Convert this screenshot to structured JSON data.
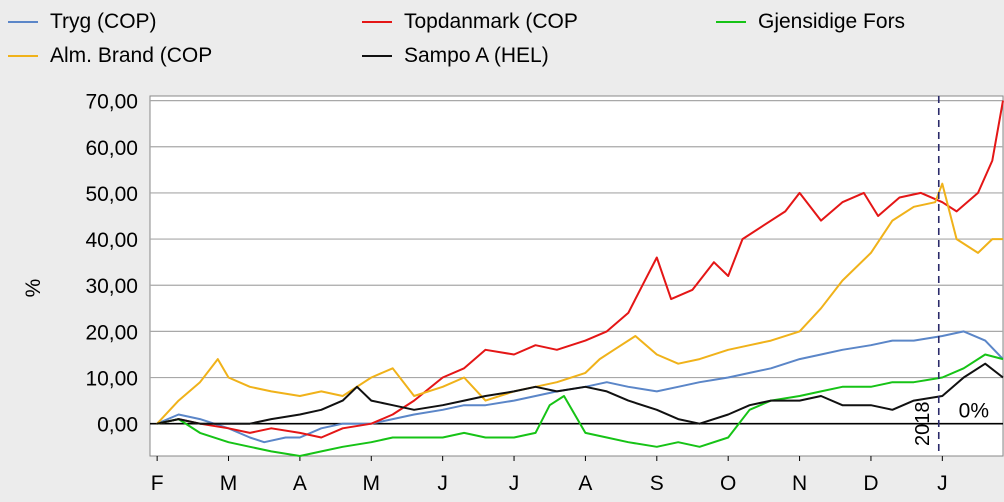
{
  "chart_data": {
    "type": "line",
    "ylabel": "%",
    "xlabel": "",
    "ylim": [
      -7,
      71
    ],
    "yticks": [
      "70,00",
      "60,00",
      "50,00",
      "40,00",
      "30,00",
      "20,00",
      "10,00",
      "0,00"
    ],
    "ytick_values": [
      70,
      60,
      50,
      40,
      30,
      20,
      10,
      0
    ],
    "month_labels": [
      "F",
      "M",
      "A",
      "M",
      "J",
      "J",
      "A",
      "S",
      "O",
      "N",
      "D",
      "J"
    ],
    "month_x": [
      0,
      1,
      2,
      3,
      4,
      5,
      6,
      7,
      8,
      9,
      10,
      11
    ],
    "xlim": [
      -0.1,
      11.85
    ],
    "year_marker": {
      "label": "2018",
      "x": 10.95
    },
    "zero_label": "0%",
    "legend_position": "top",
    "grid": true,
    "series": [
      {
        "name": "Tryg (COP)",
        "color": "#5b86c8",
        "x": [
          0,
          0.3,
          0.6,
          1,
          1.3,
          1.5,
          1.8,
          2,
          2.3,
          2.6,
          3,
          3.3,
          3.6,
          4,
          4.3,
          4.6,
          5,
          5.3,
          5.6,
          6,
          6.3,
          6.6,
          7,
          7.3,
          7.6,
          8,
          8.3,
          8.6,
          9,
          9.3,
          9.6,
          10,
          10.3,
          10.6,
          11,
          11.3,
          11.6,
          11.85
        ],
        "values": [
          0,
          2,
          1,
          -1,
          -3,
          -4,
          -3,
          -3,
          -1,
          0,
          0,
          1,
          2,
          3,
          4,
          4,
          5,
          6,
          7,
          8,
          9,
          8,
          7,
          8,
          9,
          10,
          11,
          12,
          14,
          15,
          16,
          17,
          18,
          18,
          19,
          20,
          18,
          14
        ]
      },
      {
        "name": "Topdanmark (COP",
        "color": "#e41616",
        "x": [
          0,
          0.3,
          0.6,
          1,
          1.3,
          1.6,
          2,
          2.3,
          2.6,
          3,
          3.3,
          3.6,
          4,
          4.3,
          4.6,
          5,
          5.3,
          5.6,
          6,
          6.3,
          6.6,
          6.8,
          7,
          7.2,
          7.5,
          7.8,
          8,
          8.2,
          8.5,
          8.8,
          9,
          9.3,
          9.6,
          9.9,
          10.1,
          10.4,
          10.7,
          11,
          11.2,
          11.5,
          11.7,
          11.85
        ],
        "values": [
          0,
          1,
          0,
          -1,
          -2,
          -1,
          -2,
          -3,
          -1,
          0,
          2,
          5,
          10,
          12,
          16,
          15,
          17,
          16,
          18,
          20,
          24,
          30,
          36,
          27,
          29,
          35,
          32,
          40,
          43,
          46,
          50,
          44,
          48,
          50,
          45,
          49,
          50,
          48,
          46,
          50,
          57,
          70
        ]
      },
      {
        "name": "Gjensidige Fors",
        "color": "#16c316",
        "x": [
          0,
          0.3,
          0.6,
          1,
          1.3,
          1.6,
          2,
          2.3,
          2.6,
          3,
          3.3,
          3.6,
          4,
          4.3,
          4.6,
          5,
          5.3,
          5.5,
          5.7,
          6,
          6.3,
          6.6,
          7,
          7.3,
          7.6,
          8,
          8.3,
          8.6,
          9,
          9.3,
          9.6,
          10,
          10.3,
          10.6,
          11,
          11.3,
          11.6,
          11.85
        ],
        "values": [
          0,
          1,
          -2,
          -4,
          -5,
          -6,
          -7,
          -6,
          -5,
          -4,
          -3,
          -3,
          -3,
          -2,
          -3,
          -3,
          -2,
          4,
          6,
          -2,
          -3,
          -4,
          -5,
          -4,
          -5,
          -3,
          3,
          5,
          6,
          7,
          8,
          8,
          9,
          9,
          10,
          12,
          15,
          14
        ]
      },
      {
        "name": "Alm. Brand (COP",
        "color": "#f0b21a",
        "x": [
          0,
          0.3,
          0.6,
          0.85,
          1,
          1.3,
          1.6,
          2,
          2.3,
          2.6,
          3,
          3.3,
          3.6,
          4,
          4.3,
          4.6,
          5,
          5.3,
          5.6,
          6,
          6.2,
          6.4,
          6.7,
          7,
          7.3,
          7.6,
          8,
          8.3,
          8.6,
          9,
          9.3,
          9.6,
          10,
          10.3,
          10.6,
          10.9,
          11,
          11.2,
          11.5,
          11.7,
          11.85
        ],
        "values": [
          0,
          5,
          9,
          14,
          10,
          8,
          7,
          6,
          7,
          6,
          10,
          12,
          6,
          8,
          10,
          5,
          7,
          8,
          9,
          11,
          14,
          16,
          19,
          15,
          13,
          14,
          16,
          17,
          18,
          20,
          25,
          31,
          37,
          44,
          47,
          48,
          52,
          40,
          37,
          40,
          40
        ]
      },
      {
        "name": "Sampo A (HEL)",
        "color": "#111111",
        "x": [
          0,
          0.3,
          0.6,
          1,
          1.3,
          1.6,
          2,
          2.3,
          2.6,
          2.8,
          3,
          3.3,
          3.6,
          4,
          4.3,
          4.6,
          5,
          5.3,
          5.6,
          6,
          6.3,
          6.6,
          7,
          7.3,
          7.6,
          8,
          8.3,
          8.6,
          9,
          9.3,
          9.6,
          10,
          10.3,
          10.6,
          11,
          11.3,
          11.6,
          11.85
        ],
        "values": [
          0,
          1,
          0,
          0,
          0,
          1,
          2,
          3,
          5,
          8,
          5,
          4,
          3,
          4,
          5,
          6,
          7,
          8,
          7,
          8,
          7,
          5,
          3,
          1,
          0,
          2,
          4,
          5,
          5,
          6,
          4,
          4,
          3,
          5,
          6,
          10,
          13,
          10
        ]
      }
    ]
  }
}
